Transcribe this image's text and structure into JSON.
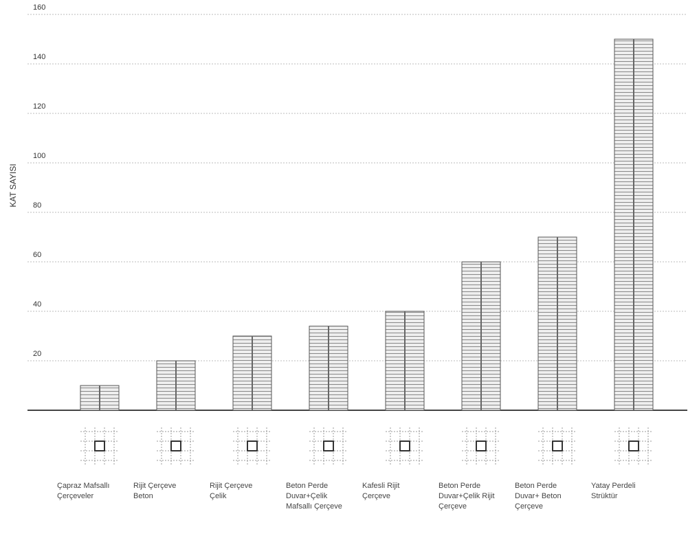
{
  "chart_data": {
    "type": "bar",
    "y_label": "KAT SAYISI",
    "categories": [
      "Çapraz Mafsallı Çerçeveler",
      "Rijit Çerçeve Beton",
      "Rijit Çerçeve Çelik",
      "Beton Perde Duvar+Çelik Mafsallı Çerçeve",
      "Kafesli Rijit Çerçeve",
      "Beton Perde Duvar+Çelik Rijit Çerçeve",
      "Beton Perde Duvar+ Beton Çerçeve",
      "Yatay Perdeli Strüktür"
    ],
    "values": [
      10,
      20,
      30,
      34,
      40,
      60,
      70,
      150
    ],
    "color": "#e6e6e6",
    "ylim": [
      0,
      160
    ],
    "yticks": [
      20,
      40,
      60,
      80,
      100,
      120,
      140,
      160
    ],
    "grid": true
  }
}
